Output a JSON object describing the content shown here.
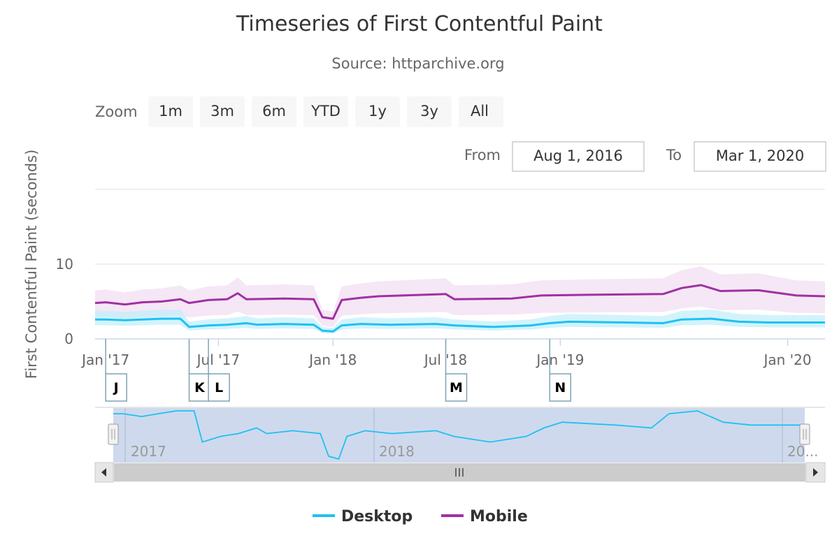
{
  "colors": {
    "desktop": "#1ec1f2",
    "mobile": "#a130a4",
    "desktop_band": "#bfeefb",
    "mobile_band": "#f3e3f3"
  },
  "chart_data": {
    "type": "line",
    "title": "Timeseries of First Contentful Paint",
    "subtitle": "Source: httparchive.org",
    "ylabel": "First Contentful Paint (seconds)",
    "xlabel": "",
    "x_range": [
      "2016-12-15",
      "2020-03-01"
    ],
    "ylim": [
      0,
      20
    ],
    "y_ticks": [
      0,
      10
    ],
    "x_ticks": [
      {
        "date": "2017-01-01",
        "label": "Jan '17"
      },
      {
        "date": "2017-07-01",
        "label": "Jul '17"
      },
      {
        "date": "2018-01-01",
        "label": "Jan '18"
      },
      {
        "date": "2018-07-01",
        "label": "Jul '18"
      },
      {
        "date": "2019-01-01",
        "label": "Jan '19"
      },
      {
        "date": "2020-01-01",
        "label": "Jan '20"
      }
    ],
    "series": [
      {
        "name": "Desktop",
        "color": "#1ec1f2",
        "points": [
          [
            "2016-12-15",
            2.6
          ],
          [
            "2017-01-01",
            2.6
          ],
          [
            "2017-02-01",
            2.5
          ],
          [
            "2017-03-01",
            2.6
          ],
          [
            "2017-04-01",
            2.7
          ],
          [
            "2017-05-01",
            2.7
          ],
          [
            "2017-05-15",
            1.6
          ],
          [
            "2017-06-15",
            1.8
          ],
          [
            "2017-07-15",
            1.9
          ],
          [
            "2017-08-15",
            2.1
          ],
          [
            "2017-09-01",
            1.9
          ],
          [
            "2017-10-15",
            2.0
          ],
          [
            "2017-12-01",
            1.9
          ],
          [
            "2017-12-15",
            1.1
          ],
          [
            "2018-01-01",
            1.0
          ],
          [
            "2018-01-15",
            1.8
          ],
          [
            "2018-02-15",
            2.0
          ],
          [
            "2018-04-01",
            1.9
          ],
          [
            "2018-06-15",
            2.0
          ],
          [
            "2018-07-15",
            1.8
          ],
          [
            "2018-09-15",
            1.6
          ],
          [
            "2018-11-15",
            1.8
          ],
          [
            "2018-12-15",
            2.1
          ],
          [
            "2019-01-15",
            2.3
          ],
          [
            "2019-04-15",
            2.2
          ],
          [
            "2019-06-15",
            2.1
          ],
          [
            "2019-07-15",
            2.6
          ],
          [
            "2019-09-01",
            2.7
          ],
          [
            "2019-10-15",
            2.3
          ],
          [
            "2019-12-01",
            2.2
          ],
          [
            "2020-03-01",
            2.2
          ]
        ]
      },
      {
        "name": "Mobile",
        "color": "#a130a4",
        "points": [
          [
            "2016-12-15",
            4.8
          ],
          [
            "2017-01-01",
            4.9
          ],
          [
            "2017-02-01",
            4.6
          ],
          [
            "2017-03-01",
            4.9
          ],
          [
            "2017-04-01",
            5.0
          ],
          [
            "2017-05-01",
            5.3
          ],
          [
            "2017-05-15",
            4.8
          ],
          [
            "2017-06-15",
            5.2
          ],
          [
            "2017-07-15",
            5.3
          ],
          [
            "2017-08-01",
            6.1
          ],
          [
            "2017-08-15",
            5.3
          ],
          [
            "2017-10-15",
            5.4
          ],
          [
            "2017-12-01",
            5.3
          ],
          [
            "2017-12-15",
            2.9
          ],
          [
            "2018-01-01",
            2.7
          ],
          [
            "2018-01-15",
            5.2
          ],
          [
            "2018-02-15",
            5.5
          ],
          [
            "2018-03-15",
            5.7
          ],
          [
            "2018-07-01",
            6.0
          ],
          [
            "2018-07-15",
            5.3
          ],
          [
            "2018-10-15",
            5.4
          ],
          [
            "2018-12-01",
            5.8
          ],
          [
            "2019-02-15",
            5.9
          ],
          [
            "2019-06-15",
            6.0
          ],
          [
            "2019-07-15",
            6.8
          ],
          [
            "2019-08-15",
            7.2
          ],
          [
            "2019-09-15",
            6.4
          ],
          [
            "2019-11-15",
            6.5
          ],
          [
            "2020-01-15",
            5.8
          ],
          [
            "2020-03-01",
            5.7
          ]
        ]
      }
    ],
    "flags": [
      {
        "label": "J",
        "date": "2017-01-01"
      },
      {
        "label": "K",
        "date": "2017-05-15"
      },
      {
        "label": "L",
        "date": "2017-06-15"
      },
      {
        "label": "M",
        "date": "2018-07-01"
      },
      {
        "label": "N",
        "date": "2018-12-15"
      }
    ],
    "navigator": {
      "labels": [
        "2017",
        "2018",
        "20..."
      ]
    },
    "legend": {
      "position": "bottom-center",
      "items": [
        "Desktop",
        "Mobile"
      ]
    }
  },
  "controls": {
    "zoom_label": "Zoom",
    "zoom_buttons": [
      "1m",
      "3m",
      "6m",
      "YTD",
      "1y",
      "3y",
      "All"
    ],
    "from_label": "From",
    "from_value": "Aug 1, 2016",
    "to_label": "To",
    "to_value": "Mar 1, 2020"
  }
}
